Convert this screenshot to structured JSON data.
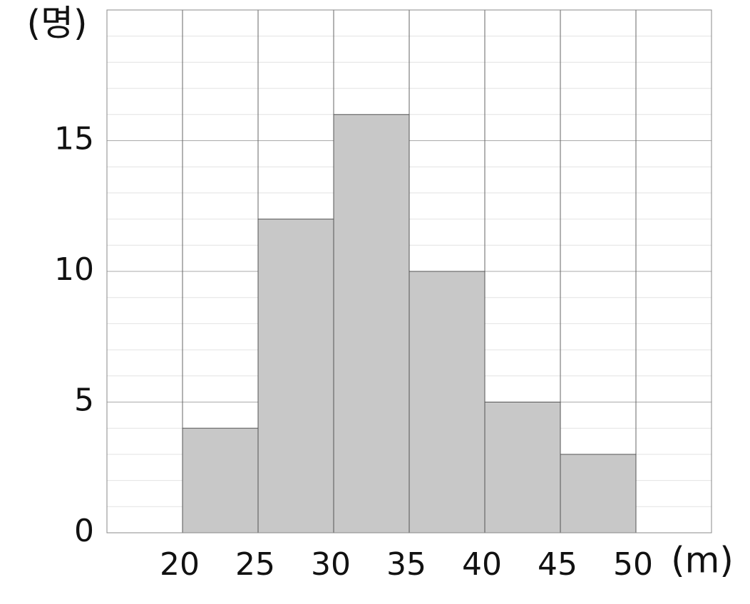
{
  "chart_data": {
    "type": "histogram",
    "bins": [
      20,
      25,
      30,
      35,
      40,
      45,
      50
    ],
    "values": [
      4,
      12,
      16,
      10,
      5,
      3
    ],
    "color": "#c8c8c8",
    "xlim": [
      15,
      55
    ],
    "xticks": [
      20,
      25,
      30,
      35,
      40,
      45,
      50
    ],
    "ylim": [
      0,
      20
    ],
    "yticks": [
      0,
      5,
      10,
      15
    ],
    "yminorticks": [
      1,
      2,
      3,
      4,
      6,
      7,
      8,
      9,
      11,
      12,
      13,
      14,
      16,
      17,
      18,
      19
    ],
    "ylabel": "(명)",
    "xlabel": "(m)",
    "grid": true
  }
}
